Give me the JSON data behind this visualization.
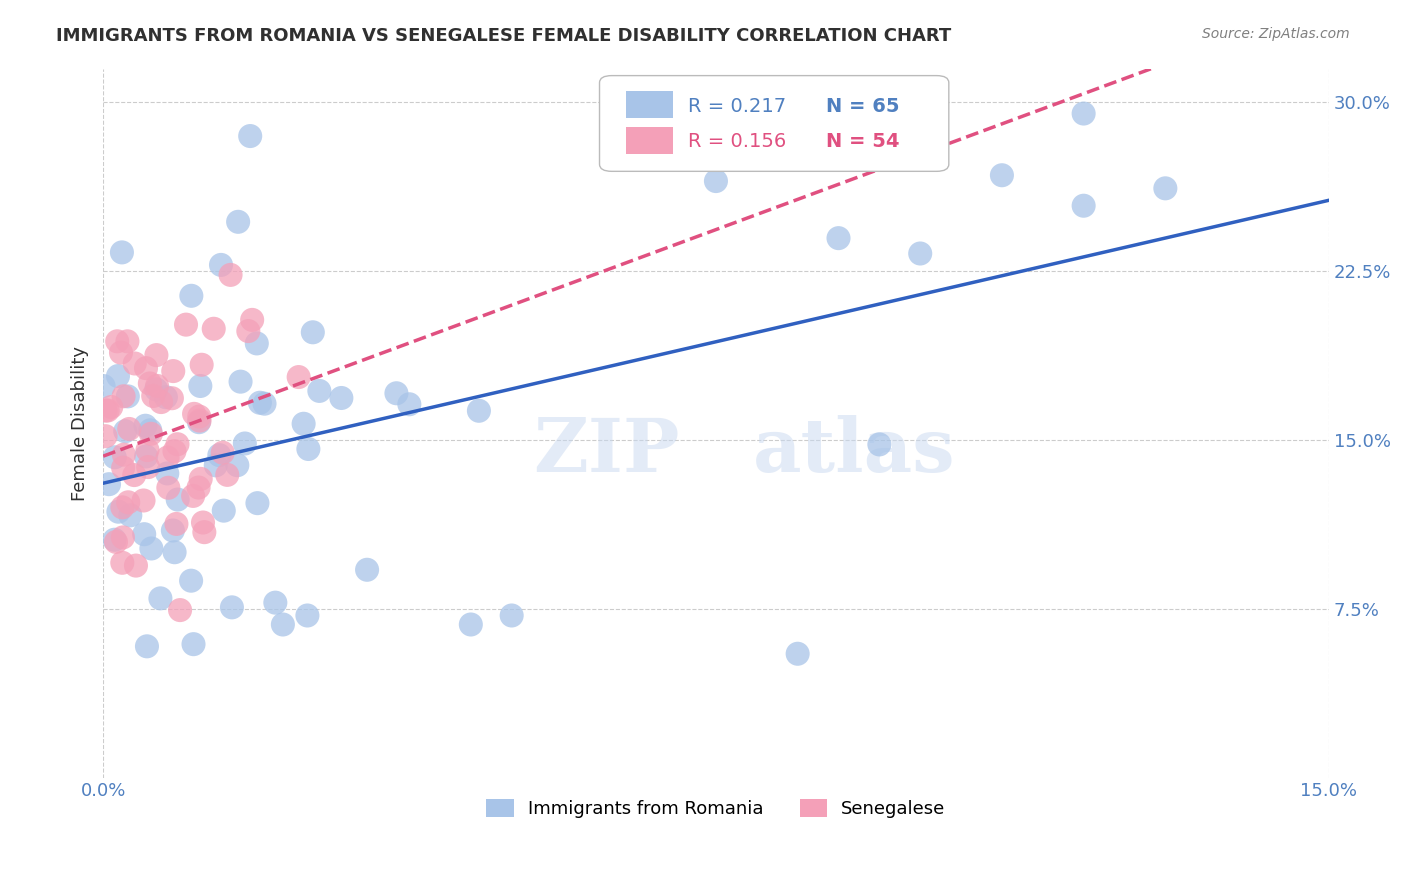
{
  "title": "IMMIGRANTS FROM ROMANIA VS SENEGALESE FEMALE DISABILITY CORRELATION CHART",
  "source": "Source: ZipAtlas.com",
  "ylabel": "Female Disability",
  "right_yticks": [
    "30.0%",
    "22.5%",
    "15.0%",
    "7.5%"
  ],
  "right_ytick_vals": [
    0.3,
    0.225,
    0.15,
    0.075
  ],
  "xmin": 0.0,
  "xmax": 0.15,
  "ymin": 0.0,
  "ymax": 0.315,
  "legend_r1": "R = 0.217",
  "legend_n1": "N = 65",
  "legend_r2": "R = 0.156",
  "legend_n2": "N = 54",
  "series1_label": "Immigrants from Romania",
  "series2_label": "Senegalese",
  "series1_color": "#a8c4e8",
  "series2_color": "#f4a0b8",
  "series1_line_color": "#3060c0",
  "series2_line_color": "#e05080",
  "watermark_zip": "ZIP",
  "watermark_atlas": "atlas"
}
